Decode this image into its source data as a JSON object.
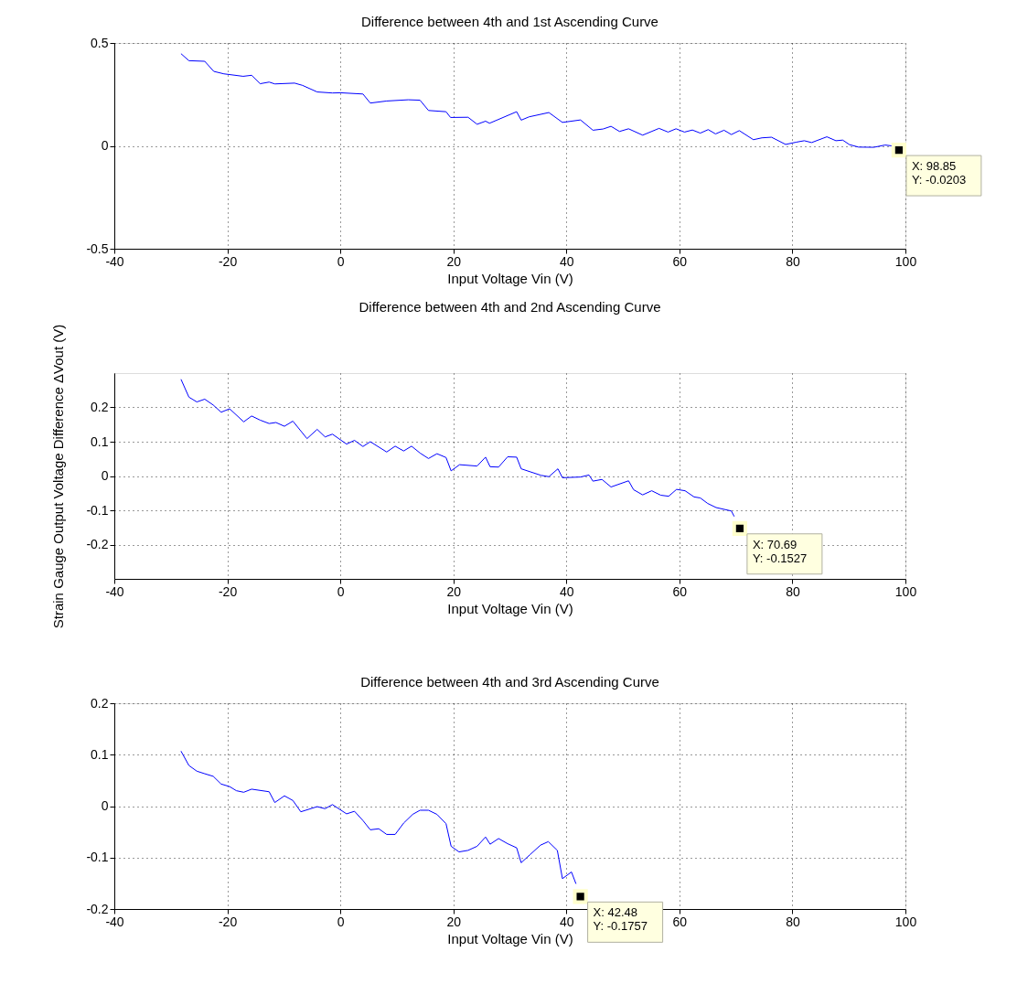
{
  "chart_data": [
    {
      "type": "line",
      "title": "Difference between 4th and 1st Ascending Curve",
      "xlabel": "Input Voltage Vin (V)",
      "series": [
        {
          "color": "#0000ff",
          "x": [
            -28.2,
            -26.8,
            -24.0,
            -22.4,
            -20.6,
            -17.2,
            -15.7,
            -14.2,
            -12.6,
            -11.6,
            -8.1,
            -6.7,
            -4.1,
            -1.4,
            0,
            4.0,
            5.3,
            8.2,
            12.0,
            14.1,
            15.6,
            18.7,
            19.5,
            22.6,
            24.2,
            25.7,
            26.4,
            31.2,
            32.0,
            33.4,
            36.9,
            39.3,
            42.5,
            44.7,
            46.5,
            47.9,
            49.4,
            51.0,
            53.5,
            56.4,
            58.0,
            59.4,
            60.9,
            62.3,
            63.7,
            65.1,
            66.4,
            67.9,
            69.2,
            70.6,
            73.1,
            74.6,
            76.3,
            78.8,
            80.7,
            82.1,
            83.4,
            86.1,
            87.7,
            88.9,
            90.1,
            91.7,
            94.4,
            96.4,
            97.6
          ],
          "values": [
            0.448,
            0.414,
            0.411,
            0.362,
            0.35,
            0.338,
            0.343,
            0.302,
            0.31,
            0.301,
            0.305,
            0.294,
            0.262,
            0.257,
            0.258,
            0.252,
            0.208,
            0.218,
            0.224,
            0.222,
            0.172,
            0.166,
            0.138,
            0.139,
            0.105,
            0.12,
            0.11,
            0.166,
            0.125,
            0.141,
            0.162,
            0.114,
            0.126,
            0.076,
            0.082,
            0.095,
            0.07,
            0.083,
            0.052,
            0.085,
            0.067,
            0.083,
            0.067,
            0.077,
            0.062,
            0.079,
            0.058,
            0.076,
            0.055,
            0.074,
            0.03,
            0.039,
            0.042,
            0.007,
            0.018,
            0.025,
            0.016,
            0.044,
            0.025,
            0.028,
            0.006,
            -0.006,
            -0.007,
            0.004,
            0.0
          ]
        }
      ],
      "xlim": [
        -40,
        100
      ],
      "xticks": [
        -40,
        -20,
        0,
        20,
        40,
        60,
        80,
        100
      ],
      "ylim": [
        -0.5,
        0.5
      ],
      "yticks": [
        -0.5,
        0,
        0.5
      ],
      "grid": true,
      "annotations": [
        {
          "text": "X: 98.85\nY: -0.0203",
          "x": 98.85,
          "y": -0.0203
        }
      ]
    },
    {
      "type": "line",
      "title": "Difference between 4th and 2nd Ascending Curve",
      "xlabel": "Input Voltage Vin (V)",
      "ylabel": "Strain Gauge Output Voltage Difference  ΔVout (V)",
      "series": [
        {
          "color": "#0000ff",
          "x": [
            -28.2,
            -26.8,
            -25.4,
            -24.0,
            -22.5,
            -21.1,
            -19.6,
            -17.1,
            -15.7,
            -14.2,
            -12.6,
            -11.4,
            -9.9,
            -8.4,
            -5.9,
            -4.1,
            -2.7,
            -1.4,
            1.1,
            2.5,
            4.0,
            5.3,
            8.2,
            9.7,
            11.2,
            12.6,
            14.1,
            15.6,
            17.1,
            18.7,
            19.6,
            21.1,
            24.2,
            25.7,
            26.5,
            28.0,
            29.6,
            31.2,
            32.0,
            35.5,
            36.9,
            38.5,
            39.3,
            42.5,
            44.0,
            44.7,
            46.3,
            47.9,
            51.0,
            51.9,
            53.5,
            55.1,
            56.7,
            58.1,
            59.5,
            61.0,
            62.6,
            63.7,
            65.0,
            66.5,
            69.2,
            69.7
          ],
          "values": [
            0.282,
            0.23,
            0.216,
            0.224,
            0.207,
            0.186,
            0.196,
            0.158,
            0.175,
            0.163,
            0.153,
            0.156,
            0.145,
            0.16,
            0.109,
            0.136,
            0.114,
            0.122,
            0.093,
            0.104,
            0.086,
            0.1,
            0.07,
            0.087,
            0.073,
            0.087,
            0.067,
            0.051,
            0.065,
            0.054,
            0.015,
            0.033,
            0.029,
            0.055,
            0.027,
            0.026,
            0.056,
            0.055,
            0.021,
            0.002,
            -0.002,
            0.021,
            -0.005,
            -0.003,
            0.003,
            -0.015,
            -0.01,
            -0.032,
            -0.014,
            -0.04,
            -0.055,
            -0.043,
            -0.056,
            -0.059,
            -0.039,
            -0.043,
            -0.061,
            -0.064,
            -0.08,
            -0.092,
            -0.102,
            -0.118
          ]
        }
      ],
      "xlim": [
        -40,
        100
      ],
      "xticks": [
        -40,
        -20,
        0,
        20,
        40,
        60,
        80,
        100
      ],
      "ylim": [
        -0.3,
        0.3
      ],
      "yticks": [
        -0.2,
        -0.1,
        0,
        0.1,
        0.2
      ],
      "grid": true,
      "annotations": [
        {
          "text": "X: 70.69\nY: -0.1527",
          "x": 70.69,
          "y": -0.1527
        }
      ]
    },
    {
      "type": "line",
      "title": "Difference between 4th and 3rd Ascending Curve",
      "xlabel": "Input Voltage Vin (V)",
      "series": [
        {
          "color": "#0000ff",
          "x": [
            -28.2,
            -26.8,
            -25.4,
            -24.0,
            -22.5,
            -21.1,
            -19.6,
            -18.4,
            -17.1,
            -15.7,
            -12.6,
            -11.6,
            -9.9,
            -8.4,
            -7.0,
            -4.1,
            -2.7,
            -1.4,
            1.1,
            2.5,
            4.0,
            5.3,
            6.8,
            8.2,
            9.7,
            11.2,
            12.8,
            14.1,
            15.6,
            17.1,
            18.7,
            19.6,
            21.0,
            22.6,
            24.2,
            25.7,
            26.5,
            28.0,
            29.6,
            31.2,
            32.0,
            33.6,
            35.4,
            36.8,
            38.4,
            39.3,
            40.9,
            41.7
          ],
          "values": [
            0.107,
            0.079,
            0.068,
            0.063,
            0.058,
            0.043,
            0.038,
            0.03,
            0.027,
            0.033,
            0.028,
            0.007,
            0.02,
            0.011,
            -0.011,
            -0.001,
            -0.005,
            0.003,
            -0.015,
            -0.01,
            -0.028,
            -0.046,
            -0.044,
            -0.055,
            -0.055,
            -0.033,
            -0.016,
            -0.008,
            -0.008,
            -0.016,
            -0.034,
            -0.078,
            -0.089,
            -0.086,
            -0.078,
            -0.06,
            -0.074,
            -0.063,
            -0.073,
            -0.081,
            -0.11,
            -0.094,
            -0.076,
            -0.069,
            -0.086,
            -0.141,
            -0.128,
            -0.151
          ]
        }
      ],
      "xlim": [
        -40,
        100
      ],
      "xticks": [
        -40,
        -20,
        0,
        20,
        40,
        60,
        80,
        100
      ],
      "ylim": [
        -0.2,
        0.2
      ],
      "yticks": [
        -0.2,
        -0.1,
        0,
        0.1,
        0.2
      ],
      "grid": true,
      "annotations": [
        {
          "text": "X: 42.48\nY: -0.1757",
          "x": 42.48,
          "y": -0.1757
        }
      ]
    }
  ]
}
